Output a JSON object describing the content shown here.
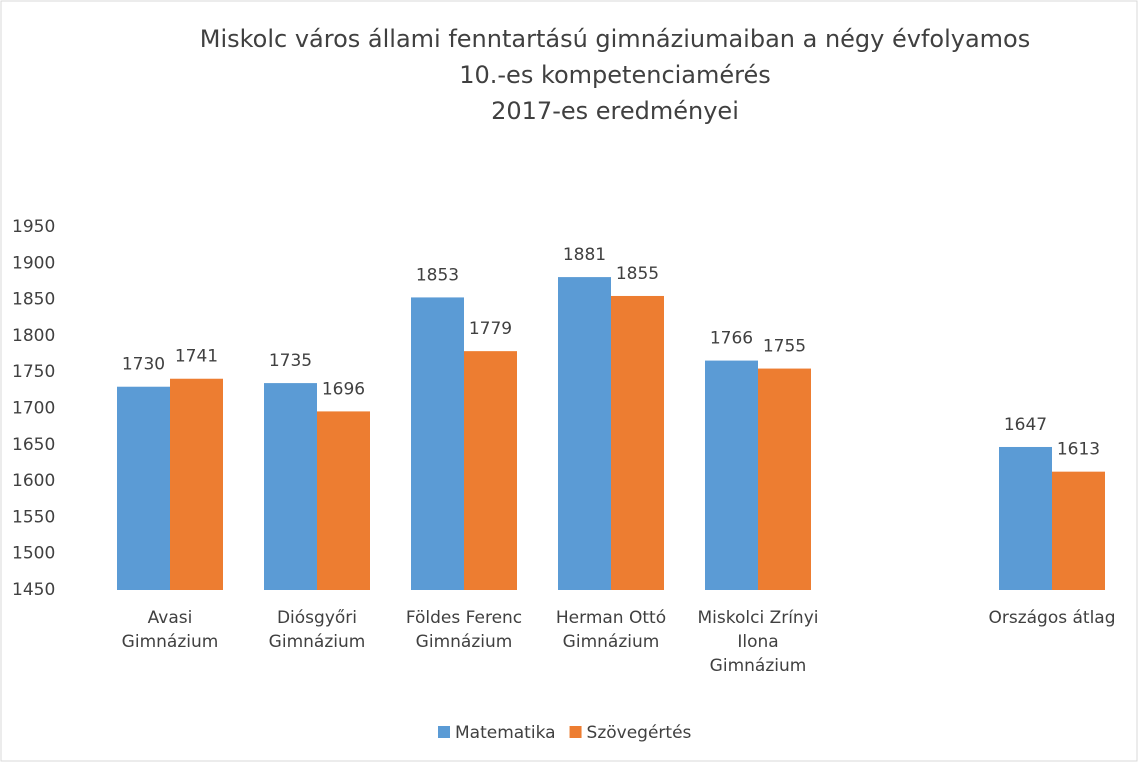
{
  "chart_data": {
    "type": "bar",
    "title": [
      "Miskolc város állami fenntartású gimnáziumaiban a négy évfolyamos",
      "10.-es kompetenciamérés",
      "2017-es eredményei"
    ],
    "categories": [
      "Avasi Gimnázium",
      "Diósgyőri Gimnázium",
      "Földes Ferenc Gimnázium",
      "Herman Ottó Gimnázium",
      "Miskolci Zrínyi Ilona Gimnázium",
      null,
      "Országos átlag"
    ],
    "series": [
      {
        "name": "Matematika",
        "color": "#5b9bd5",
        "values": [
          1730,
          1735,
          1853,
          1881,
          1766,
          null,
          1647
        ]
      },
      {
        "name": "Szövegértés",
        "color": "#ed7d31",
        "values": [
          1741,
          1696,
          1779,
          1855,
          1755,
          null,
          1613
        ]
      }
    ],
    "ylim": [
      1450,
      1950
    ],
    "yticks": [
      1450,
      1500,
      1550,
      1600,
      1650,
      1700,
      1750,
      1800,
      1850,
      1900,
      1950
    ],
    "grid": false,
    "legend": "bottom"
  }
}
